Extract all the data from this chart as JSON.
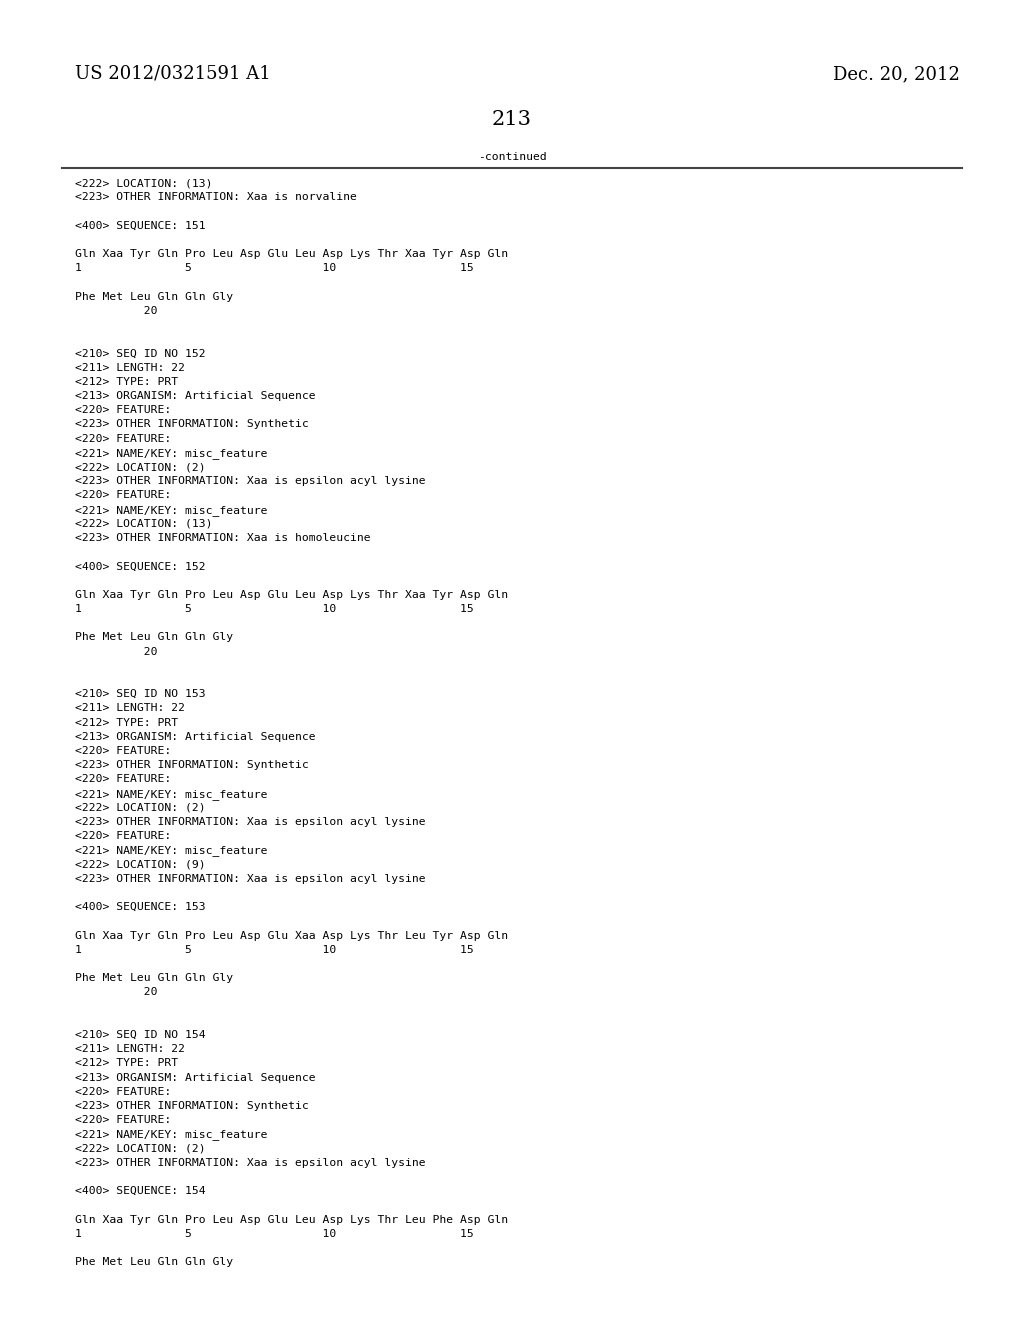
{
  "header_left": "US 2012/0321591 A1",
  "header_right": "Dec. 20, 2012",
  "page_number": "213",
  "continued_label": "-continued",
  "background_color": "#ffffff",
  "text_color": "#000000",
  "font_size_header": 13,
  "font_size_page": 15,
  "font_size_body": 8.2,
  "lines": [
    "<222> LOCATION: (13)",
    "<223> OTHER INFORMATION: Xaa is norvaline",
    "",
    "<400> SEQUENCE: 151",
    "",
    "Gln Xaa Tyr Gln Pro Leu Asp Glu Leu Asp Lys Thr Xaa Tyr Asp Gln",
    "1               5                   10                  15",
    "",
    "Phe Met Leu Gln Gln Gly",
    "          20",
    "",
    "",
    "<210> SEQ ID NO 152",
    "<211> LENGTH: 22",
    "<212> TYPE: PRT",
    "<213> ORGANISM: Artificial Sequence",
    "<220> FEATURE:",
    "<223> OTHER INFORMATION: Synthetic",
    "<220> FEATURE:",
    "<221> NAME/KEY: misc_feature",
    "<222> LOCATION: (2)",
    "<223> OTHER INFORMATION: Xaa is epsilon acyl lysine",
    "<220> FEATURE:",
    "<221> NAME/KEY: misc_feature",
    "<222> LOCATION: (13)",
    "<223> OTHER INFORMATION: Xaa is homoleucine",
    "",
    "<400> SEQUENCE: 152",
    "",
    "Gln Xaa Tyr Gln Pro Leu Asp Glu Leu Asp Lys Thr Xaa Tyr Asp Gln",
    "1               5                   10                  15",
    "",
    "Phe Met Leu Gln Gln Gly",
    "          20",
    "",
    "",
    "<210> SEQ ID NO 153",
    "<211> LENGTH: 22",
    "<212> TYPE: PRT",
    "<213> ORGANISM: Artificial Sequence",
    "<220> FEATURE:",
    "<223> OTHER INFORMATION: Synthetic",
    "<220> FEATURE:",
    "<221> NAME/KEY: misc_feature",
    "<222> LOCATION: (2)",
    "<223> OTHER INFORMATION: Xaa is epsilon acyl lysine",
    "<220> FEATURE:",
    "<221> NAME/KEY: misc_feature",
    "<222> LOCATION: (9)",
    "<223> OTHER INFORMATION: Xaa is epsilon acyl lysine",
    "",
    "<400> SEQUENCE: 153",
    "",
    "Gln Xaa Tyr Gln Pro Leu Asp Glu Xaa Asp Lys Thr Leu Tyr Asp Gln",
    "1               5                   10                  15",
    "",
    "Phe Met Leu Gln Gln Gly",
    "          20",
    "",
    "",
    "<210> SEQ ID NO 154",
    "<211> LENGTH: 22",
    "<212> TYPE: PRT",
    "<213> ORGANISM: Artificial Sequence",
    "<220> FEATURE:",
    "<223> OTHER INFORMATION: Synthetic",
    "<220> FEATURE:",
    "<221> NAME/KEY: misc_feature",
    "<222> LOCATION: (2)",
    "<223> OTHER INFORMATION: Xaa is epsilon acyl lysine",
    "",
    "<400> SEQUENCE: 154",
    "",
    "Gln Xaa Tyr Gln Pro Leu Asp Glu Leu Asp Lys Thr Leu Phe Asp Gln",
    "1               5                   10                  15",
    "",
    "Phe Met Leu Gln Gln Gly"
  ]
}
